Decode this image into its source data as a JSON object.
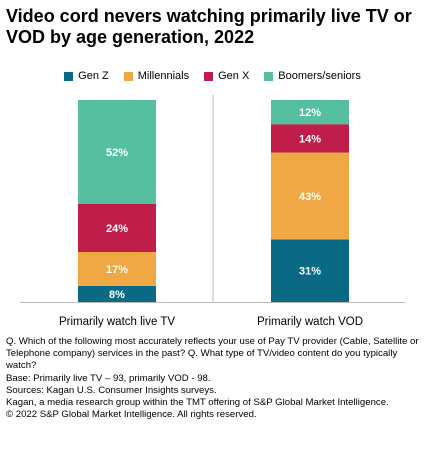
{
  "chart_data": {
    "type": "bar",
    "stacked": true,
    "title": "Video cord nevers watching primarily live TV or VOD by age generation, 2022",
    "categories": [
      "Primarily watch live TV",
      "Primarily watch VOD"
    ],
    "ylim": [
      0,
      100
    ],
    "grid": false,
    "legend_position": "top",
    "series": [
      {
        "name": "Gen Z",
        "color": "#0a6a86",
        "values": [
          8,
          31
        ],
        "labels": [
          "8%",
          "31%"
        ]
      },
      {
        "name": "Millennials",
        "color": "#f0a844",
        "values": [
          17,
          43
        ],
        "labels": [
          "17%",
          "43%"
        ]
      },
      {
        "name": "Gen X",
        "color": "#bf1d4a",
        "values": [
          24,
          14
        ],
        "labels": [
          "24%",
          "14%"
        ]
      },
      {
        "name": "Boomers/seniors",
        "color": "#55bfa0",
        "values": [
          52,
          12
        ],
        "labels": [
          "52%",
          "12%"
        ]
      }
    ]
  },
  "notes": [
    "Q. Which of the following most accurately reflects your use of Pay TV provider (Cable, Satellite or Telephone company) services in the past? Q.  What type of TV/video content do you typically watch?",
    "Base: Primarily live TV – 93, primarily VOD - 98.",
    "Sources: Kagan U.S. Consumer Insights surveys.",
    "Kagan, a media research group within the TMT offering of S&P Global Market Intelligence.",
    "© 2022 S&P Global Market Intelligence.  All rights reserved."
  ]
}
